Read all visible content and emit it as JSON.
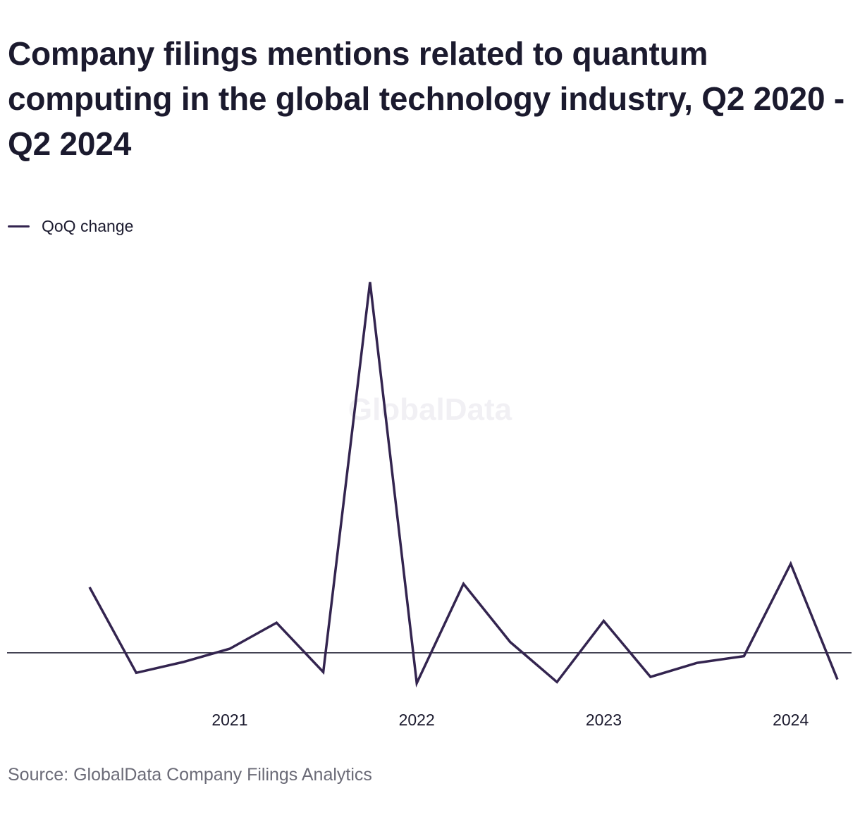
{
  "header": {
    "title": "Company filings mentions related to quantum computing in the global technology industry, Q2 2020 - Q2 2024"
  },
  "legend": {
    "label": "QoQ change",
    "color": "#33244f"
  },
  "watermark": "GlobalData",
  "footer": {
    "source": "Source: GlobalData Company Filings Analytics"
  },
  "chart_data": {
    "type": "line",
    "title": "Company filings mentions related to quantum computing in the global technology industry, Q2 2020 - Q2 2024",
    "xlabel": "",
    "ylabel": "",
    "x": [
      "Q2 2020",
      "Q3 2020",
      "Q4 2020",
      "Q1 2021",
      "Q2 2021",
      "Q3 2021",
      "Q4 2021",
      "Q1 2022",
      "Q2 2022",
      "Q3 2022",
      "Q4 2022",
      "Q1 2023",
      "Q2 2023",
      "Q3 2023",
      "Q4 2023",
      "Q1 2024",
      "Q2 2024"
    ],
    "x_tick_labels": [
      "2021",
      "2022",
      "2023",
      "2024"
    ],
    "x_tick_positions": [
      "Q1 2021",
      "Q1 2022",
      "Q1 2023",
      "Q1 2024"
    ],
    "series": [
      {
        "name": "QoQ change",
        "color": "#33244f",
        "values": [
          0.177,
          -0.054,
          -0.025,
          0.011,
          0.081,
          -0.052,
          1.0,
          -0.082,
          0.186,
          0.029,
          -0.079,
          0.086,
          -0.065,
          -0.027,
          -0.009,
          0.24,
          -0.072
        ]
      }
    ],
    "ylim": [
      -0.12,
      1.02
    ],
    "zero_line": true,
    "y_tick_labels_shown": false,
    "grid": false,
    "legend_position": "top-left"
  }
}
